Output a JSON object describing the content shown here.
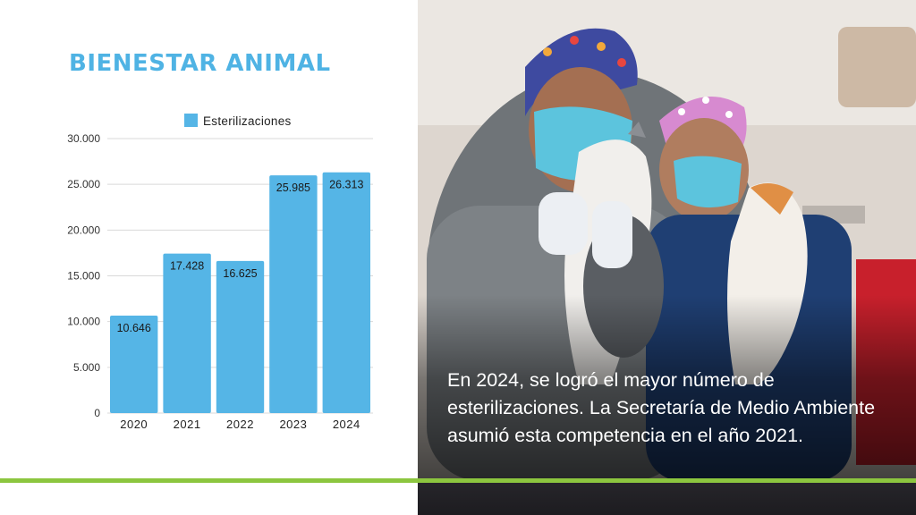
{
  "title": "BIENESTAR ANIMAL",
  "chart_data": {
    "type": "bar",
    "categories": [
      "2020",
      "2021",
      "2022",
      "2023",
      "2024"
    ],
    "series": [
      {
        "name": "Esterilizaciones",
        "values": [
          10646,
          17428,
          16625,
          25985,
          26313
        ]
      }
    ],
    "data_labels": [
      "10.646",
      "17.428",
      "16.625",
      "25.985",
      "26.313"
    ],
    "yticks": [
      0,
      5000,
      10000,
      15000,
      20000,
      25000,
      30000
    ],
    "ytick_labels": [
      "0",
      "5.000",
      "10.000",
      "15.000",
      "20.000",
      "25.000",
      "30.000"
    ],
    "ylim": [
      0,
      30000
    ],
    "grid": true,
    "legend_position": "top",
    "bar_color": "#55b5e6"
  },
  "caption": "En 2024, se logró el mayor número de esterilizaciones.  La Secretaría de Medio Ambiente asumió esta competencia en el año 2021.",
  "colors": {
    "title": "#4fb3e4",
    "accent_line": "#8cc63f"
  },
  "photo": {
    "subject": "two veterinary workers holding cats"
  }
}
